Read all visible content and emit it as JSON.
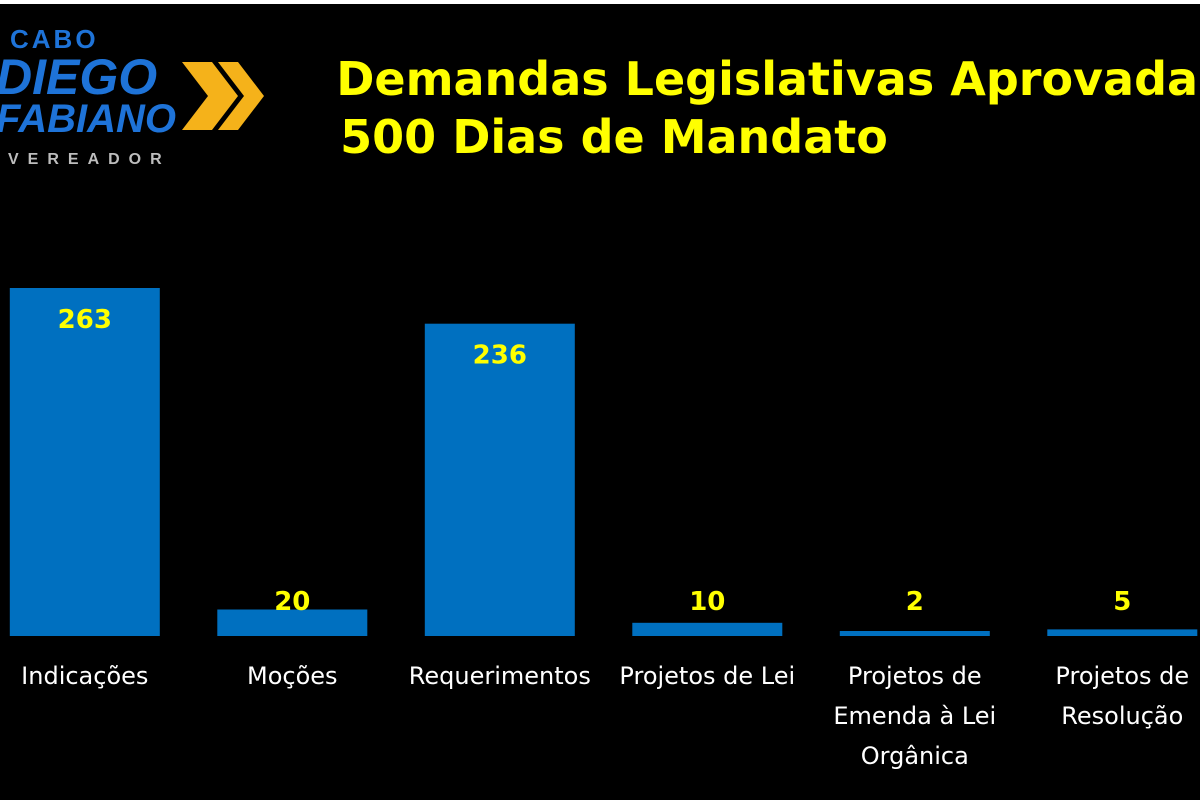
{
  "logo": {
    "top_word": "CABO",
    "name_line_1": "DIEGO",
    "name_line_2": "FABIANO",
    "role": "VEREADOR",
    "colors": {
      "primary": "#1e73d8",
      "accent": "#f5b21a",
      "role_text": "#bdbdbd"
    }
  },
  "chart_data": {
    "type": "bar",
    "title": "Demandas Legislativas Aprovadas:",
    "subtitle": "500 Dias de Mandato",
    "categories": [
      [
        "Indicações"
      ],
      [
        "Moções"
      ],
      [
        "Requerimentos"
      ],
      [
        "Projetos de Lei"
      ],
      [
        "Projetos de",
        "Emenda à Lei",
        "Orgânica"
      ],
      [
        "Projetos de",
        "Resolução"
      ]
    ],
    "values": [
      263,
      20,
      236,
      10,
      2,
      5
    ],
    "data_labels": [
      "263",
      "20",
      "236",
      "10",
      "2",
      "5"
    ],
    "xlabel": "",
    "ylabel": "",
    "ylim": [
      0,
      263
    ],
    "grid": false,
    "legend": "none",
    "colors": {
      "background": "#000000",
      "bar": "#0070c0",
      "title": "#ffff00",
      "data_label": "#ffff00",
      "category_label": "#ffffff"
    }
  }
}
